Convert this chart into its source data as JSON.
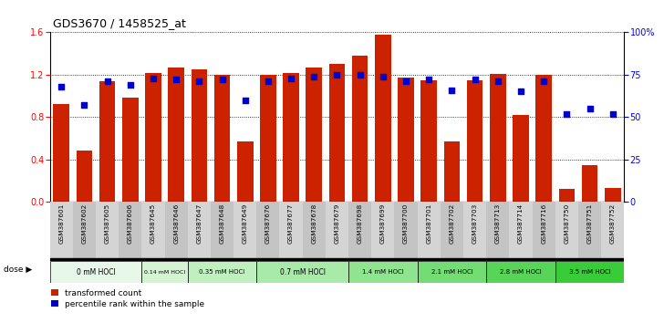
{
  "title": "GDS3670 / 1458525_at",
  "samples": [
    "GSM387601",
    "GSM387602",
    "GSM387605",
    "GSM387606",
    "GSM387645",
    "GSM387646",
    "GSM387647",
    "GSM387648",
    "GSM387649",
    "GSM387676",
    "GSM387677",
    "GSM387678",
    "GSM387679",
    "GSM387698",
    "GSM387699",
    "GSM387700",
    "GSM387701",
    "GSM387702",
    "GSM387703",
    "GSM387713",
    "GSM387714",
    "GSM387716",
    "GSM387750",
    "GSM387751",
    "GSM387752"
  ],
  "bar_values": [
    0.92,
    0.48,
    1.14,
    0.98,
    1.22,
    1.27,
    1.25,
    1.2,
    0.57,
    1.2,
    1.22,
    1.27,
    1.3,
    1.38,
    1.58,
    1.17,
    1.15,
    0.57,
    1.15,
    1.21,
    0.82,
    1.2,
    0.12,
    0.35,
    0.13
  ],
  "percentile_values_pct": [
    68,
    57,
    71,
    69,
    73,
    72,
    71,
    72,
    60,
    71,
    73,
    74,
    75,
    75,
    74,
    71,
    72,
    66,
    72,
    71,
    65,
    71,
    52,
    55,
    52
  ],
  "dose_groups": [
    {
      "label": "0 mM HOCl",
      "start": 0,
      "end": 4,
      "color": "#e8f8e8"
    },
    {
      "label": "0.14 mM HOCl",
      "start": 4,
      "end": 6,
      "color": "#d4f4d4"
    },
    {
      "label": "0.35 mM HOCl",
      "start": 6,
      "end": 9,
      "color": "#c0f0c0"
    },
    {
      "label": "0.7 mM HOCl",
      "start": 9,
      "end": 13,
      "color": "#a8eaa8"
    },
    {
      "label": "1.4 mM HOCl",
      "start": 13,
      "end": 16,
      "color": "#90e490"
    },
    {
      "label": "2.1 mM HOCl",
      "start": 16,
      "end": 19,
      "color": "#74dc74"
    },
    {
      "label": "2.8 mM HOCl",
      "start": 19,
      "end": 22,
      "color": "#58d458"
    },
    {
      "label": "3.5 mM HOCl",
      "start": 22,
      "end": 25,
      "color": "#38cc38"
    }
  ],
  "bar_color": "#cc2200",
  "dot_color": "#0000cc",
  "ylim_left": [
    0,
    1.6
  ],
  "ylim_right": [
    0,
    100
  ],
  "yticks_left": [
    0,
    0.4,
    0.8,
    1.2,
    1.6
  ],
  "yticks_right": [
    0,
    25,
    50,
    75,
    100
  ],
  "ytick_labels_right": [
    "0",
    "25",
    "50",
    "75",
    "100%"
  ]
}
